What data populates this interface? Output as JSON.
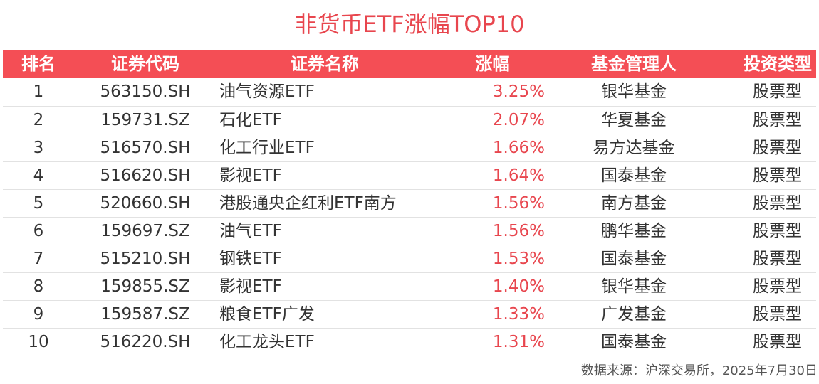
{
  "title": "非货币ETF涨幅TOP10",
  "table": {
    "headers": {
      "rank": "排名",
      "code": "证券代码",
      "name": "证券名称",
      "change": "涨幅",
      "manager": "基金管理人",
      "type": "投资类型"
    },
    "rows": [
      {
        "rank": "1",
        "code": "563150.SH",
        "name": "油气资源ETF",
        "change": "3.25%",
        "manager": "银华基金",
        "type": "股票型"
      },
      {
        "rank": "2",
        "code": "159731.SZ",
        "name": "石化ETF",
        "change": "2.07%",
        "manager": "华夏基金",
        "type": "股票型"
      },
      {
        "rank": "3",
        "code": "516570.SH",
        "name": "化工行业ETF",
        "change": "1.66%",
        "manager": "易方达基金",
        "type": "股票型"
      },
      {
        "rank": "4",
        "code": "516620.SH",
        "name": "影视ETF",
        "change": "1.64%",
        "manager": "国泰基金",
        "type": "股票型"
      },
      {
        "rank": "5",
        "code": "520660.SH",
        "name": "港股通央企红利ETF南方",
        "change": "1.56%",
        "manager": "南方基金",
        "type": "股票型"
      },
      {
        "rank": "6",
        "code": "159697.SZ",
        "name": "油气ETF",
        "change": "1.56%",
        "manager": "鹏华基金",
        "type": "股票型"
      },
      {
        "rank": "7",
        "code": "515210.SH",
        "name": "钢铁ETF",
        "change": "1.53%",
        "manager": "国泰基金",
        "type": "股票型"
      },
      {
        "rank": "8",
        "code": "159855.SZ",
        "name": "影视ETF",
        "change": "1.40%",
        "manager": "银华基金",
        "type": "股票型"
      },
      {
        "rank": "9",
        "code": "159587.SZ",
        "name": "粮食ETF广发",
        "change": "1.33%",
        "manager": "广发基金",
        "type": "股票型"
      },
      {
        "rank": "10",
        "code": "516220.SH",
        "name": "化工龙头ETF",
        "change": "1.31%",
        "manager": "国泰基金",
        "type": "股票型"
      }
    ]
  },
  "source": "数据来源：沪深交易所，2025年7月30日",
  "colors": {
    "accent": "#f44e55",
    "title": "#e8464e",
    "change_text": "#e8464e"
  }
}
